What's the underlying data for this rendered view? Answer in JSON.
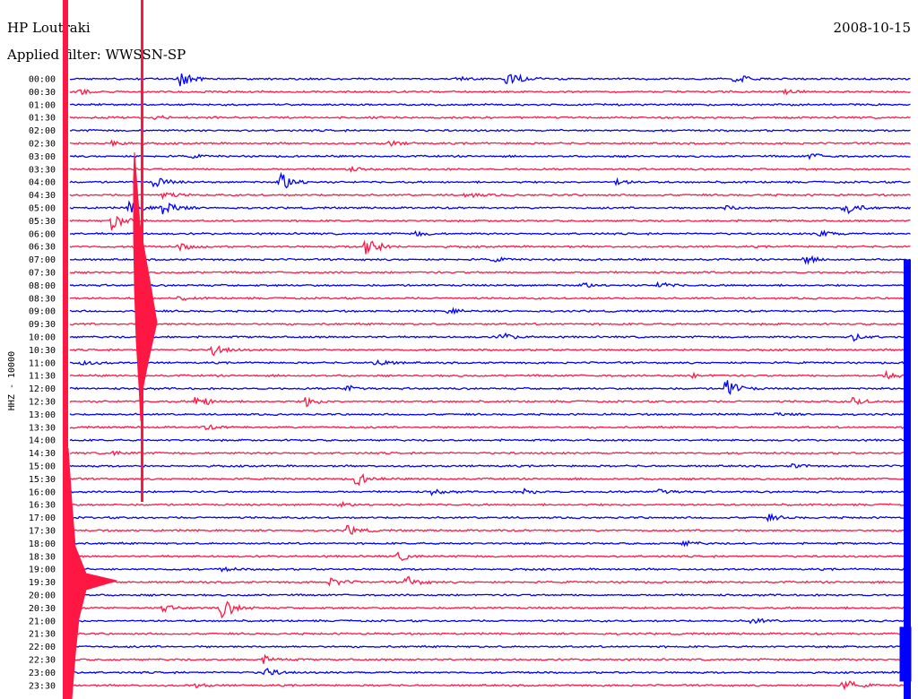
{
  "header": {
    "station": "HP Loutraki",
    "date": "2008-10-15",
    "filter": "Applied filter: WWSSN-SP"
  },
  "axis_label": "HHZ - 10000",
  "colors": {
    "trace_a": "#0000ff",
    "trace_b": "#ff1744",
    "background": "#ffffff"
  },
  "chart_data": {
    "type": "helicorder",
    "station": "HP Loutraki",
    "channel": "HHZ",
    "filter": "WWSSN-SP",
    "date": "2008-10-15",
    "row_interval_minutes": 30,
    "time_labels": [
      "00:00",
      "00:30",
      "01:00",
      "01:30",
      "02:00",
      "02:30",
      "03:00",
      "03:30",
      "04:00",
      "04:30",
      "05:00",
      "05:30",
      "06:00",
      "06:30",
      "07:00",
      "07:30",
      "08:00",
      "08:30",
      "09:00",
      "09:30",
      "10:00",
      "10:30",
      "11:00",
      "11:30",
      "12:00",
      "12:30",
      "13:00",
      "13:30",
      "14:00",
      "14:30",
      "15:00",
      "15:30",
      "16:00",
      "16:30",
      "17:00",
      "17:30",
      "18:00",
      "18:30",
      "19:00",
      "19:30",
      "20:00",
      "20:30",
      "21:00",
      "21:30",
      "22:00",
      "22:30",
      "23:00",
      "23:30"
    ],
    "trace_colors": [
      "#0000ff",
      "#ff1744"
    ],
    "events": [
      {
        "row": 0,
        "t": 0.13,
        "amp": 1.4
      },
      {
        "row": 0,
        "t": 0.52,
        "amp": 1.6
      },
      {
        "row": 0,
        "t": 0.79,
        "amp": 0.9
      },
      {
        "row": 0,
        "t": 0.46,
        "amp": 0.3
      },
      {
        "row": 1,
        "t": 0.01,
        "amp": 0.5
      },
      {
        "row": 1,
        "t": 0.85,
        "amp": 0.3
      },
      {
        "row": 3,
        "t": 0.1,
        "amp": 0.3
      },
      {
        "row": 5,
        "t": 0.05,
        "amp": 0.6
      },
      {
        "row": 5,
        "t": 0.38,
        "amp": 0.4
      },
      {
        "row": 6,
        "t": 0.88,
        "amp": 0.6
      },
      {
        "row": 6,
        "t": 0.14,
        "amp": 0.3
      },
      {
        "row": 7,
        "t": 0.33,
        "amp": 0.4
      },
      {
        "row": 8,
        "t": 0.25,
        "amp": 1.8
      },
      {
        "row": 8,
        "t": 0.1,
        "amp": 0.9
      },
      {
        "row": 8,
        "t": 0.65,
        "amp": 0.4
      },
      {
        "row": 9,
        "t": 0.47,
        "amp": 0.5
      },
      {
        "row": 9,
        "t": 0.11,
        "amp": 0.6
      },
      {
        "row": 10,
        "t": 0.11,
        "amp": 1.6
      },
      {
        "row": 10,
        "t": 0.07,
        "amp": 1.0
      },
      {
        "row": 10,
        "t": 0.92,
        "amp": 1.4
      },
      {
        "row": 10,
        "t": 0.78,
        "amp": 0.4
      },
      {
        "row": 11,
        "t": 0.05,
        "amp": 1.8
      },
      {
        "row": 12,
        "t": 0.41,
        "amp": 0.4
      },
      {
        "row": 12,
        "t": 0.89,
        "amp": 0.6
      },
      {
        "row": 13,
        "t": 0.35,
        "amp": 2.2
      },
      {
        "row": 13,
        "t": 0.13,
        "amp": 0.6
      },
      {
        "row": 14,
        "t": 0.87,
        "amp": 0.8
      },
      {
        "row": 14,
        "t": 0.5,
        "amp": 0.4
      },
      {
        "row": 16,
        "t": 0.61,
        "amp": 0.4
      },
      {
        "row": 16,
        "t": 0.7,
        "amp": 0.5
      },
      {
        "row": 17,
        "t": 0.13,
        "amp": 0.3
      },
      {
        "row": 18,
        "t": 0.45,
        "amp": 0.4
      },
      {
        "row": 20,
        "t": 0.51,
        "amp": 0.8
      },
      {
        "row": 20,
        "t": 0.93,
        "amp": 0.6
      },
      {
        "row": 21,
        "t": 0.17,
        "amp": 0.9
      },
      {
        "row": 22,
        "t": 0.36,
        "amp": 0.8
      },
      {
        "row": 22,
        "t": 0.01,
        "amp": 0.6
      },
      {
        "row": 23,
        "t": 0.97,
        "amp": 0.7
      },
      {
        "row": 23,
        "t": 0.74,
        "amp": 0.3
      },
      {
        "row": 24,
        "t": 0.33,
        "amp": 0.6
      },
      {
        "row": 24,
        "t": 0.78,
        "amp": 1.6
      },
      {
        "row": 25,
        "t": 0.15,
        "amp": 1.3
      },
      {
        "row": 25,
        "t": 0.28,
        "amp": 0.8
      },
      {
        "row": 25,
        "t": 0.93,
        "amp": 0.6
      },
      {
        "row": 26,
        "t": 0.84,
        "amp": 0.3
      },
      {
        "row": 27,
        "t": 0.16,
        "amp": 0.4
      },
      {
        "row": 29,
        "t": 0.05,
        "amp": 0.4
      },
      {
        "row": 30,
        "t": 0.86,
        "amp": 0.4
      },
      {
        "row": 31,
        "t": 0.34,
        "amp": 1.1
      },
      {
        "row": 32,
        "t": 0.43,
        "amp": 0.4
      },
      {
        "row": 32,
        "t": 0.54,
        "amp": 0.4
      },
      {
        "row": 32,
        "t": 0.7,
        "amp": 0.7
      },
      {
        "row": 33,
        "t": 0.32,
        "amp": 0.3
      },
      {
        "row": 34,
        "t": 0.83,
        "amp": 0.5
      },
      {
        "row": 35,
        "t": 0.33,
        "amp": 0.8
      },
      {
        "row": 36,
        "t": 0.73,
        "amp": 0.4
      },
      {
        "row": 37,
        "t": 0.39,
        "amp": 0.8
      },
      {
        "row": 38,
        "t": 0.18,
        "amp": 0.3
      },
      {
        "row": 39,
        "t": 0.31,
        "amp": 0.7
      },
      {
        "row": 39,
        "t": 0.4,
        "amp": 1.0
      },
      {
        "row": 41,
        "t": 0.11,
        "amp": 0.5
      },
      {
        "row": 41,
        "t": 0.18,
        "amp": 1.9
      },
      {
        "row": 42,
        "t": 0.81,
        "amp": 0.5
      },
      {
        "row": 45,
        "t": 0.23,
        "amp": 0.6
      },
      {
        "row": 46,
        "t": 0.23,
        "amp": 0.8
      },
      {
        "row": 46,
        "t": 0.99,
        "amp": 1.5
      },
      {
        "row": 47,
        "t": 0.92,
        "amp": 1.0
      },
      {
        "row": 47,
        "t": 0.15,
        "amp": 0.3
      }
    ],
    "xlabel": "",
    "ylabel": "HHZ - 10000"
  }
}
